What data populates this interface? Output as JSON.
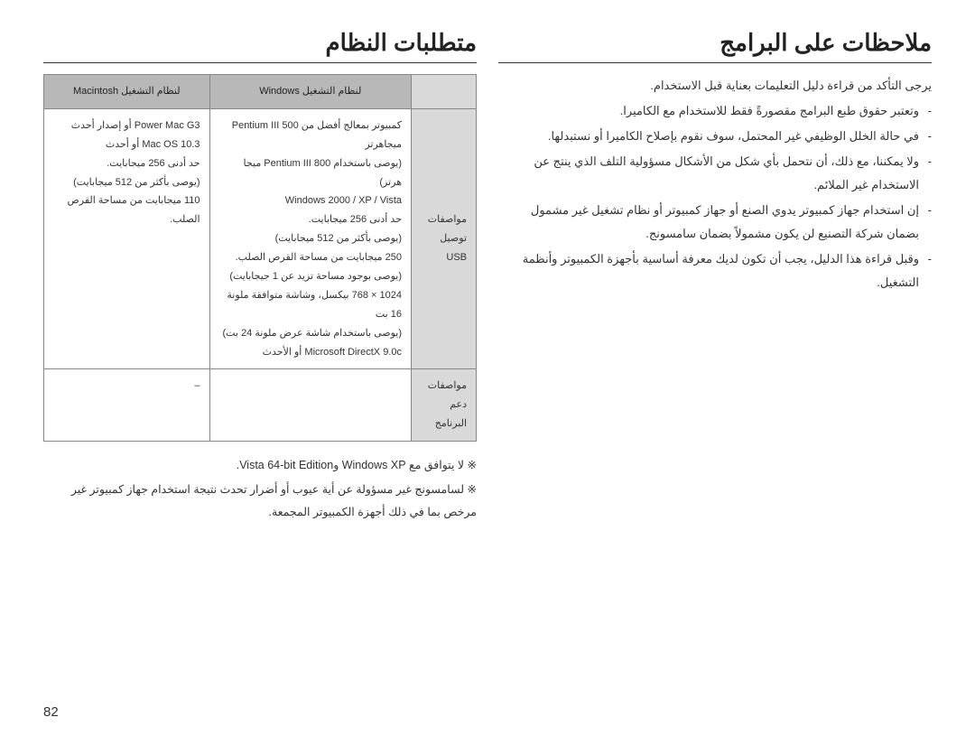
{
  "sections": {
    "right": {
      "title": "ملاحظات على البرامج",
      "paragraphs": [
        {
          "text": "يرجى التأكد من قراءة دليل التعليمات بعناية قبل الاستخدام.",
          "indent": false
        },
        {
          "text": "وتعتبر حقوق طبع البرامج مقصورةً فقط للاستخدام مع الكاميرا.",
          "indent": true
        },
        {
          "text": "في حالة الخلل الوظيفي غير المحتمل، سوف نقوم بإصلاح الكاميرا أو نستبدلها.",
          "indent": true
        },
        {
          "text": "ولا يمكننا، مع ذلك، أن نتحمل بأي شكل من الأشكال مسؤولية التلف الذي ينتج عن الاستخدام غير الملائم.",
          "indent": true
        },
        {
          "text": "إن استخدام جهاز كمبيوتر يدوي الصنع أو جهاز كمبيوتر أو نظام تشغيل غير مشمول بضمان شركة التصنيع لن يكون مشمولاً بضمان سامسونج.",
          "indent": true
        },
        {
          "text": "وقبل قراءة هذا الدليل، يجب أن تكون لديك معرفة أساسية بأجهزة الكمبيوتر وأنظمة التشغيل.",
          "indent": true
        }
      ]
    },
    "left": {
      "title": "متطلبات النظام",
      "table": {
        "headers": {
          "blank": "",
          "windows": "لنظام التشغيل Windows",
          "mac": "لنظام التشغيل Macintosh"
        },
        "rows": [
          {
            "header": "مواصفات توصيل USB",
            "windows": "كمبيوتر بمعالج أفضل من Pentium III 500 ميجاهرتز\n(يوصى باستخدام Pentium III 800 ميجا هرتز)\nWindows 2000 / XP / Vista\nحد أدنى 256 ميجابايت.\n(يوصى بأكثر من 512 ميجابايت)\n250 ميجابايت من مساحة القرص الصلب.\n(يوصى بوجود مساحة تزيد عن 1 جيجابايت)\n1024 × 768 بيكسل، وشاشة متوافقة ملونة 16 بت\n(يوصى باستخدام شاشة عرض ملونة 24 بت)\nMicrosoft DirectX 9.0c أو الأحدث",
            "mac": "Power Mac G3 أو إصدار أحدث\nMac OS 10.3 أو أحدث\nحد أدنى 256 ميجابايت.\n(يوصى بأكثر من 512 ميجابايت)\n110 ميجابايت من مساحة القرص الصلب."
          },
          {
            "header": "مواصفات دعم البرنامج",
            "windows": "",
            "mac": "–"
          }
        ]
      },
      "notes": [
        "※ لا يتوافق مع Windows XP وVista 64-bit Edition.",
        "※ لسامسونج غير مسؤولة عن أية عيوب أو أضرار تحدث نتيجة استخدام جهاز كمبيوتر غير مرخص بما في ذلك أجهزة الكمبيوتر المجمعة."
      ]
    }
  },
  "page_number": "82"
}
